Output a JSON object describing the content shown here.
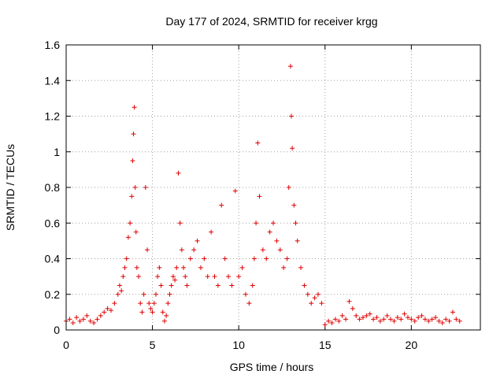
{
  "chart_data": {
    "type": "scatter",
    "title": "Day 177 of 2024, SRMTID for receiver krgg",
    "xlabel": "GPS time / hours",
    "ylabel": "SRMTID / TECUs",
    "xlim": [
      0,
      24
    ],
    "ylim": [
      0,
      1.6
    ],
    "xticks": [
      0,
      5,
      10,
      15,
      20
    ],
    "xtick_labels": [
      "0",
      "5",
      "10",
      "15",
      "20"
    ],
    "yticks": [
      0,
      0.2,
      0.4,
      0.6,
      0.8,
      1.0,
      1.2,
      1.4,
      1.6
    ],
    "ytick_labels": [
      "0",
      "0.2",
      "0.4",
      "0.6",
      "0.8",
      "1",
      "1.2",
      "1.4",
      "1.6"
    ],
    "grid": true,
    "marker": "+",
    "color": "#e00000",
    "series": [
      {
        "name": "krgg",
        "x": [
          0.0,
          0.2,
          0.4,
          0.6,
          0.8,
          1.0,
          1.2,
          1.4,
          1.6,
          1.8,
          2.0,
          2.2,
          2.4,
          2.6,
          2.8,
          3.0,
          3.1,
          3.2,
          3.3,
          3.4,
          3.5,
          3.6,
          3.7,
          3.8,
          3.85,
          3.9,
          3.95,
          4.0,
          4.05,
          4.1,
          4.2,
          4.3,
          4.4,
          4.5,
          4.6,
          4.7,
          4.8,
          4.9,
          5.0,
          5.1,
          5.2,
          5.3,
          5.4,
          5.5,
          5.6,
          5.7,
          5.8,
          5.9,
          6.0,
          6.1,
          6.2,
          6.3,
          6.4,
          6.5,
          6.6,
          6.7,
          6.8,
          6.9,
          7.0,
          7.2,
          7.4,
          7.6,
          7.8,
          8.0,
          8.2,
          8.4,
          8.6,
          8.8,
          9.0,
          9.2,
          9.4,
          9.6,
          9.8,
          10.0,
          10.2,
          10.4,
          10.6,
          10.8,
          10.9,
          11.0,
          11.1,
          11.2,
          11.4,
          11.6,
          11.8,
          12.0,
          12.2,
          12.4,
          12.6,
          12.8,
          12.9,
          13.0,
          13.05,
          13.1,
          13.2,
          13.3,
          13.4,
          13.6,
          13.8,
          14.0,
          14.2,
          14.4,
          14.6,
          14.8,
          15.0,
          15.2,
          15.4,
          15.6,
          15.8,
          16.0,
          16.2,
          16.4,
          16.6,
          16.8,
          17.0,
          17.2,
          17.4,
          17.6,
          17.8,
          18.0,
          18.2,
          18.4,
          18.6,
          18.8,
          19.0,
          19.2,
          19.4,
          19.6,
          19.8,
          20.0,
          20.2,
          20.4,
          20.6,
          20.8,
          21.0,
          21.2,
          21.4,
          21.6,
          21.8,
          22.0,
          22.2,
          22.4,
          22.6,
          22.8
        ],
        "y": [
          0.05,
          0.06,
          0.04,
          0.07,
          0.05,
          0.06,
          0.08,
          0.05,
          0.04,
          0.06,
          0.08,
          0.1,
          0.12,
          0.11,
          0.15,
          0.2,
          0.25,
          0.22,
          0.3,
          0.35,
          0.4,
          0.52,
          0.6,
          0.75,
          0.95,
          1.1,
          1.25,
          0.8,
          0.55,
          0.35,
          0.3,
          0.15,
          0.1,
          0.2,
          0.8,
          0.45,
          0.15,
          0.12,
          0.1,
          0.15,
          0.2,
          0.3,
          0.35,
          0.25,
          0.1,
          0.05,
          0.08,
          0.15,
          0.2,
          0.25,
          0.3,
          0.28,
          0.35,
          0.88,
          0.6,
          0.45,
          0.35,
          0.3,
          0.25,
          0.4,
          0.45,
          0.5,
          0.35,
          0.4,
          0.3,
          0.55,
          0.3,
          0.25,
          0.7,
          0.4,
          0.3,
          0.25,
          0.78,
          0.3,
          0.35,
          0.2,
          0.15,
          0.25,
          0.4,
          0.6,
          1.05,
          0.75,
          0.45,
          0.4,
          0.55,
          0.6,
          0.5,
          0.45,
          0.35,
          0.4,
          0.8,
          1.48,
          1.2,
          1.02,
          0.7,
          0.6,
          0.5,
          0.35,
          0.25,
          0.2,
          0.15,
          0.18,
          0.2,
          0.15,
          0.03,
          0.05,
          0.04,
          0.06,
          0.05,
          0.08,
          0.06,
          0.16,
          0.12,
          0.08,
          0.06,
          0.07,
          0.08,
          0.09,
          0.06,
          0.07,
          0.05,
          0.06,
          0.08,
          0.06,
          0.05,
          0.07,
          0.06,
          0.09,
          0.07,
          0.06,
          0.05,
          0.07,
          0.08,
          0.06,
          0.05,
          0.06,
          0.07,
          0.05,
          0.04,
          0.06,
          0.05,
          0.1,
          0.06,
          0.05
        ]
      }
    ]
  }
}
